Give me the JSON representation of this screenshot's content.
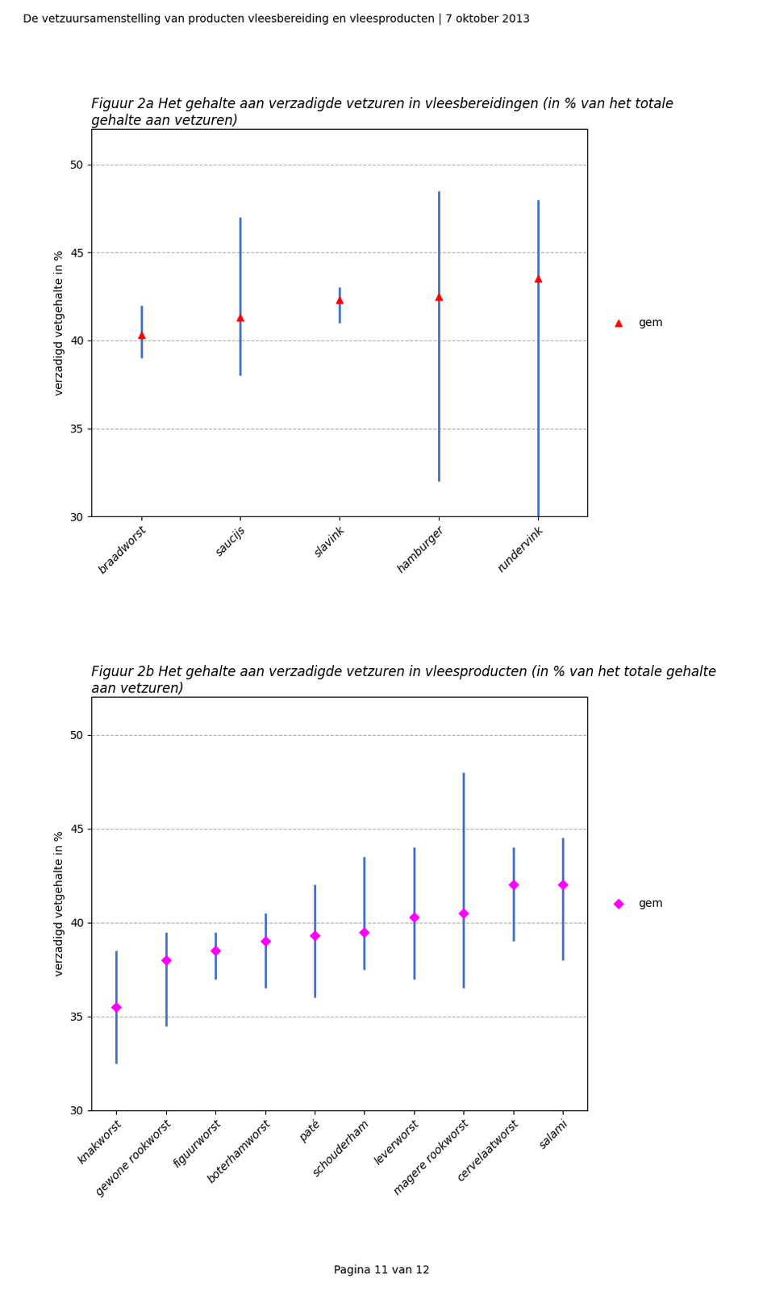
{
  "annotations": [
    "De vetzuursamenstelling van producten vleesbereiding en vleesproducten | 7 oktober 2013",
    "Pagina 11 van 12"
  ],
  "chart_data": [
    {
      "type": "range",
      "title": "Figuur 2a Het gehalte aan verzadigde vetzuren in vleesbereidingen (in % van het totale\ngehalte aan vetzuren)",
      "ylabel": "verzadigd vetgehalte in %",
      "categories": [
        "braadworst",
        "saucijs",
        "slavink",
        "hamburger",
        "rundervink"
      ],
      "color": "#4472C4",
      "series": [
        {
          "name": "gem",
          "color": "#FF0000",
          "marker": "^",
          "values": [
            40.3,
            41.3,
            42.3,
            42.5,
            43.5
          ],
          "min": [
            39.0,
            38.0,
            41.0,
            32.0,
            30.0
          ],
          "max": [
            42.0,
            47.0,
            43.0,
            48.5,
            48.0
          ]
        }
      ],
      "ylim": [
        30,
        52
      ],
      "yticks": [
        30,
        35,
        40,
        45,
        50
      ],
      "grid": true,
      "legend": "center left"
    },
    {
      "type": "range",
      "title": "Figuur 2b Het gehalte aan verzadigde vetzuren in vleesproducten (in % van het totale gehalte\naan vetzuren)",
      "ylabel": "verzadigd vetgehalte in %",
      "categories": [
        "knakworst",
        "gewone rookworst",
        "figuurworst",
        "boterhamworst",
        "paté",
        "schouderham",
        "leverworst",
        "magere rookworst",
        "cervelaatworst",
        "salami"
      ],
      "color": "#4472C4",
      "series": [
        {
          "name": "gem",
          "color": "#FF00FF",
          "marker": "D",
          "values": [
            35.5,
            38.0,
            38.5,
            39.0,
            39.3,
            39.5,
            40.3,
            40.5,
            42.0,
            42.0
          ],
          "min": [
            32.5,
            34.5,
            37.0,
            36.5,
            36.0,
            37.5,
            37.0,
            36.5,
            39.0,
            38.0
          ],
          "max": [
            38.5,
            39.5,
            39.5,
            40.5,
            42.0,
            43.5,
            44.0,
            48.0,
            44.0,
            44.5
          ]
        }
      ],
      "ylim": [
        30,
        52
      ],
      "yticks": [
        30,
        35,
        40,
        45,
        50
      ],
      "grid": true,
      "legend": "center left"
    }
  ]
}
